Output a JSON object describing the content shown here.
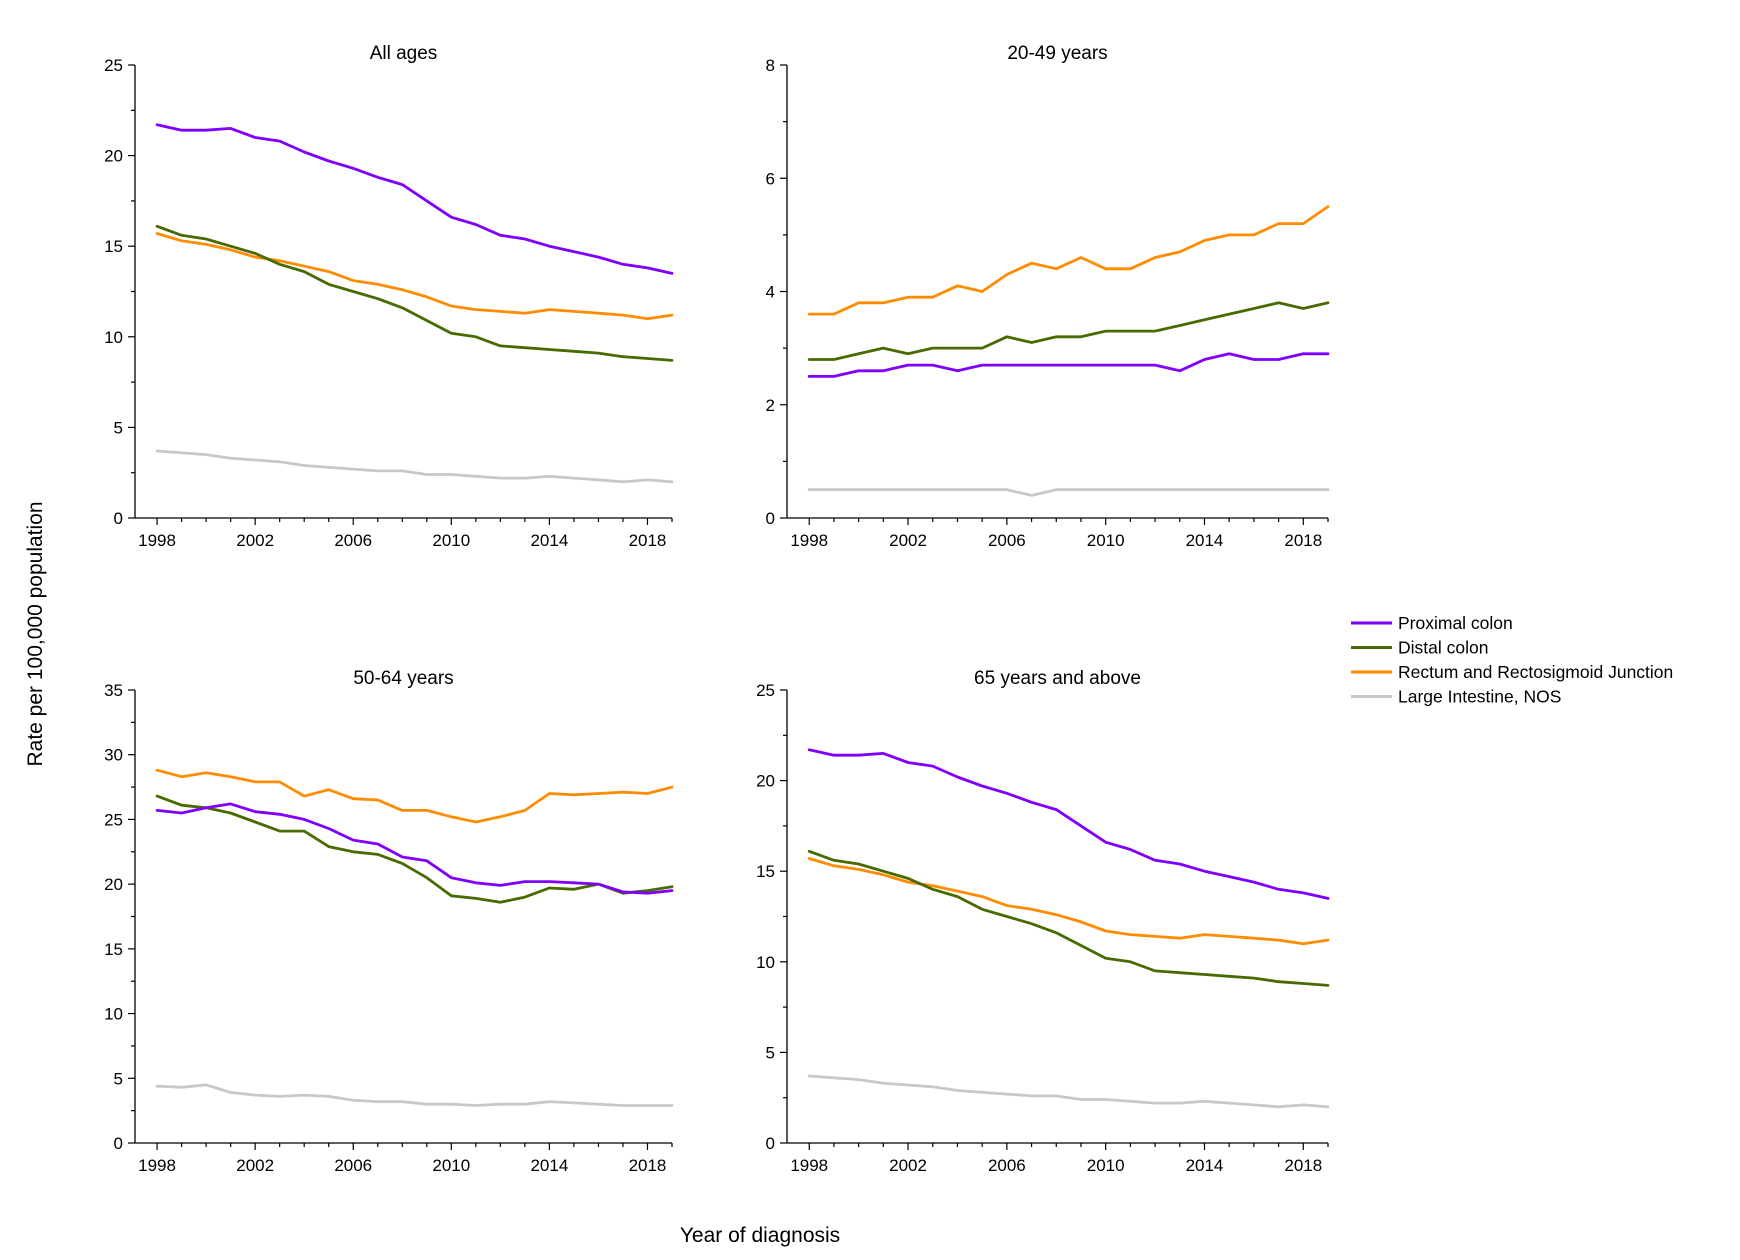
{
  "figure": {
    "ylabel": "Rate per 100,000 population",
    "xlabel": "Year of diagnosis"
  },
  "legend": {
    "placement": "right-middle",
    "items": [
      {
        "label": "Proximal colon",
        "color": "#7F00FF"
      },
      {
        "label": "Distal colon",
        "color": "#476B00"
      },
      {
        "label": "Rectum and Rectosigmoid Junction",
        "color": "#FF8C00"
      },
      {
        "label": "Large Intestine, NOS",
        "color": "#C8C8C8"
      }
    ]
  },
  "chart_data": [
    {
      "type": "line",
      "title": "All ages",
      "x": [
        1998,
        1999,
        2000,
        2001,
        2002,
        2003,
        2004,
        2005,
        2006,
        2007,
        2008,
        2009,
        2010,
        2011,
        2012,
        2013,
        2014,
        2015,
        2016,
        2017,
        2018,
        2019
      ],
      "xticks": [
        "1998",
        "2002",
        "2006",
        "2010",
        "2014",
        "2018"
      ],
      "xlim": [
        1997.1,
        2019
      ],
      "ylim": [
        0,
        25
      ],
      "yticks": [
        "0",
        "5",
        "10",
        "15",
        "20",
        "25"
      ],
      "grid": false,
      "series": [
        {
          "name": "Proximal colon",
          "color": "#7F00FF",
          "values": [
            21.7,
            21.4,
            21.4,
            21.5,
            21.0,
            20.8,
            20.2,
            19.7,
            19.3,
            18.8,
            18.4,
            17.5,
            16.6,
            16.2,
            15.6,
            15.4,
            15.0,
            14.7,
            14.4,
            14.0,
            13.8,
            13.5
          ]
        },
        {
          "name": "Distal colon",
          "color": "#476B00",
          "values": [
            16.1,
            15.6,
            15.4,
            15.0,
            14.6,
            14.0,
            13.6,
            12.9,
            12.5,
            12.1,
            11.6,
            10.9,
            10.2,
            10.0,
            9.5,
            9.4,
            9.3,
            9.2,
            9.1,
            8.9,
            8.8,
            8.7
          ]
        },
        {
          "name": "Rectum and Rectosigmoid Junction",
          "color": "#FF8C00",
          "values": [
            15.7,
            15.3,
            15.1,
            14.8,
            14.4,
            14.2,
            13.9,
            13.6,
            13.1,
            12.9,
            12.6,
            12.2,
            11.7,
            11.5,
            11.4,
            11.3,
            11.5,
            11.4,
            11.3,
            11.2,
            11.0,
            11.2
          ]
        },
        {
          "name": "Large Intestine, NOS",
          "color": "#C8C8C8",
          "values": [
            3.7,
            3.6,
            3.5,
            3.3,
            3.2,
            3.1,
            2.9,
            2.8,
            2.7,
            2.6,
            2.6,
            2.4,
            2.4,
            2.3,
            2.2,
            2.2,
            2.3,
            2.2,
            2.1,
            2.0,
            2.1,
            2.0
          ]
        }
      ]
    },
    {
      "type": "line",
      "title": "20-49 years",
      "x": [
        1998,
        1999,
        2000,
        2001,
        2002,
        2003,
        2004,
        2005,
        2006,
        2007,
        2008,
        2009,
        2010,
        2011,
        2012,
        2013,
        2014,
        2015,
        2016,
        2017,
        2018,
        2019
      ],
      "xticks": [
        "1998",
        "2002",
        "2006",
        "2010",
        "2014",
        "2018"
      ],
      "xlim": [
        1997.1,
        2019
      ],
      "ylim": [
        0,
        8
      ],
      "yticks": [
        "0",
        "2",
        "4",
        "6",
        "8"
      ],
      "grid": false,
      "series": [
        {
          "name": "Proximal colon",
          "color": "#7F00FF",
          "values": [
            2.5,
            2.5,
            2.6,
            2.6,
            2.7,
            2.7,
            2.6,
            2.7,
            2.7,
            2.7,
            2.7,
            2.7,
            2.7,
            2.7,
            2.7,
            2.6,
            2.8,
            2.9,
            2.8,
            2.8,
            2.9,
            2.9
          ]
        },
        {
          "name": "Distal colon",
          "color": "#476B00",
          "values": [
            2.8,
            2.8,
            2.9,
            3.0,
            2.9,
            3.0,
            3.0,
            3.0,
            3.2,
            3.1,
            3.2,
            3.2,
            3.3,
            3.3,
            3.3,
            3.4,
            3.5,
            3.6,
            3.7,
            3.8,
            3.7,
            3.8
          ]
        },
        {
          "name": "Rectum and Rectosigmoid Junction",
          "color": "#FF8C00",
          "values": [
            3.6,
            3.6,
            3.8,
            3.8,
            3.9,
            3.9,
            4.1,
            4.0,
            4.3,
            4.5,
            4.4,
            4.6,
            4.4,
            4.4,
            4.6,
            4.7,
            4.9,
            5.0,
            5.0,
            5.2,
            5.2,
            5.5
          ]
        },
        {
          "name": "Large Intestine, NOS",
          "color": "#C8C8C8",
          "values": [
            0.5,
            0.5,
            0.5,
            0.5,
            0.5,
            0.5,
            0.5,
            0.5,
            0.5,
            0.4,
            0.5,
            0.5,
            0.5,
            0.5,
            0.5,
            0.5,
            0.5,
            0.5,
            0.5,
            0.5,
            0.5,
            0.5
          ]
        }
      ]
    },
    {
      "type": "line",
      "title": "50-64 years",
      "x": [
        1998,
        1999,
        2000,
        2001,
        2002,
        2003,
        2004,
        2005,
        2006,
        2007,
        2008,
        2009,
        2010,
        2011,
        2012,
        2013,
        2014,
        2015,
        2016,
        2017,
        2018,
        2019
      ],
      "xticks": [
        "1998",
        "2002",
        "2006",
        "2010",
        "2014",
        "2018"
      ],
      "xlim": [
        1997.1,
        2019
      ],
      "ylim": [
        0,
        35
      ],
      "yticks": [
        "0",
        "5",
        "10",
        "15",
        "20",
        "25",
        "30",
        "35"
      ],
      "grid": false,
      "series": [
        {
          "name": "Proximal colon",
          "color": "#7F00FF",
          "values": [
            25.7,
            25.5,
            25.9,
            26.2,
            25.6,
            25.4,
            25.0,
            24.3,
            23.4,
            23.1,
            22.1,
            21.8,
            20.5,
            20.1,
            19.9,
            20.2,
            20.2,
            20.1,
            20.0,
            19.4,
            19.3,
            19.5
          ]
        },
        {
          "name": "Distal colon",
          "color": "#476B00",
          "values": [
            26.8,
            26.1,
            25.9,
            25.5,
            24.8,
            24.1,
            24.1,
            22.9,
            22.5,
            22.3,
            21.6,
            20.5,
            19.1,
            18.9,
            18.6,
            19.0,
            19.7,
            19.6,
            20.0,
            19.3,
            19.5,
            19.8
          ]
        },
        {
          "name": "Rectum and Rectosigmoid Junction",
          "color": "#FF8C00",
          "values": [
            28.8,
            28.3,
            28.6,
            28.3,
            27.9,
            27.9,
            26.8,
            27.3,
            26.6,
            26.5,
            25.7,
            25.7,
            25.2,
            24.8,
            25.2,
            25.7,
            27.0,
            26.9,
            27.0,
            27.1,
            27.0,
            27.5
          ]
        },
        {
          "name": "Large Intestine, NOS",
          "color": "#C8C8C8",
          "values": [
            4.4,
            4.3,
            4.5,
            3.9,
            3.7,
            3.6,
            3.7,
            3.6,
            3.3,
            3.2,
            3.2,
            3.0,
            3.0,
            2.9,
            3.0,
            3.0,
            3.2,
            3.1,
            3.0,
            2.9,
            2.9,
            2.9
          ]
        }
      ]
    },
    {
      "type": "line",
      "title": "65 years and above",
      "x": [
        1998,
        1999,
        2000,
        2001,
        2002,
        2003,
        2004,
        2005,
        2006,
        2007,
        2008,
        2009,
        2010,
        2011,
        2012,
        2013,
        2014,
        2015,
        2016,
        2017,
        2018,
        2019
      ],
      "xticks": [
        "1998",
        "2002",
        "2006",
        "2010",
        "2014",
        "2018"
      ],
      "xlim": [
        1997.1,
        2019
      ],
      "ylim": [
        0,
        25
      ],
      "yticks": [
        "0",
        "5",
        "10",
        "15",
        "20",
        "25"
      ],
      "grid": false,
      "series": [
        {
          "name": "Proximal colon",
          "color": "#7F00FF",
          "values": [
            21.7,
            21.4,
            21.4,
            21.5,
            21.0,
            20.8,
            20.2,
            19.7,
            19.3,
            18.8,
            18.4,
            17.5,
            16.6,
            16.2,
            15.6,
            15.4,
            15.0,
            14.7,
            14.4,
            14.0,
            13.8,
            13.5
          ]
        },
        {
          "name": "Distal colon",
          "color": "#476B00",
          "values": [
            16.1,
            15.6,
            15.4,
            15.0,
            14.6,
            14.0,
            13.6,
            12.9,
            12.5,
            12.1,
            11.6,
            10.9,
            10.2,
            10.0,
            9.5,
            9.4,
            9.3,
            9.2,
            9.1,
            8.9,
            8.8,
            8.7
          ]
        },
        {
          "name": "Rectum and Rectosigmoid Junction",
          "color": "#FF8C00",
          "values": [
            15.7,
            15.3,
            15.1,
            14.8,
            14.4,
            14.2,
            13.9,
            13.6,
            13.1,
            12.9,
            12.6,
            12.2,
            11.7,
            11.5,
            11.4,
            11.3,
            11.5,
            11.4,
            11.3,
            11.2,
            11.0,
            11.2
          ]
        },
        {
          "name": "Large Intestine, NOS",
          "color": "#C8C8C8",
          "values": [
            3.7,
            3.6,
            3.5,
            3.3,
            3.2,
            3.1,
            2.9,
            2.8,
            2.7,
            2.6,
            2.6,
            2.4,
            2.4,
            2.3,
            2.2,
            2.2,
            2.3,
            2.2,
            2.1,
            2.0,
            2.1,
            2.0
          ]
        }
      ]
    }
  ]
}
